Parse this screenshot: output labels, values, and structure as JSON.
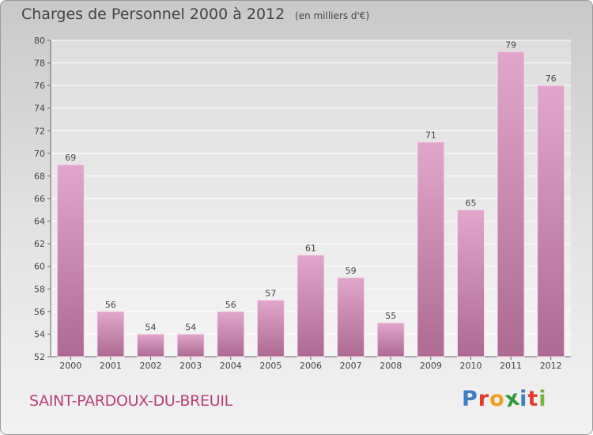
{
  "title": "Charges de Personnel 2000 à 2012",
  "subtitle": "(en milliers d'€)",
  "commune": "SAINT-PARDOUX-DU-BREUIL",
  "logo": {
    "letters": [
      "P",
      "r",
      "o",
      "x",
      "i",
      "t",
      "i"
    ],
    "colors": [
      "#3f7fc4",
      "#e23b2e",
      "#f0a020",
      "#2d9b3e",
      "#3f7fc4",
      "#e23b2e",
      "#7cb342"
    ]
  },
  "colors": {
    "bar_top": "#e2a6cc",
    "bar_bottom": "#ad6a93",
    "text": "#444444"
  },
  "chart_data": {
    "type": "bar",
    "categories": [
      "2000",
      "2001",
      "2002",
      "2003",
      "2004",
      "2005",
      "2006",
      "2007",
      "2008",
      "2009",
      "2010",
      "2011",
      "2012"
    ],
    "values": [
      69,
      56,
      54,
      54,
      56,
      57,
      61,
      59,
      55,
      71,
      65,
      79,
      76
    ],
    "title": "Charges de Personnel 2000 à 2012",
    "ylim": [
      52,
      80
    ],
    "yticks": [
      52,
      54,
      56,
      58,
      60,
      62,
      64,
      66,
      68,
      70,
      72,
      74,
      76,
      78,
      80
    ],
    "grid": true
  }
}
